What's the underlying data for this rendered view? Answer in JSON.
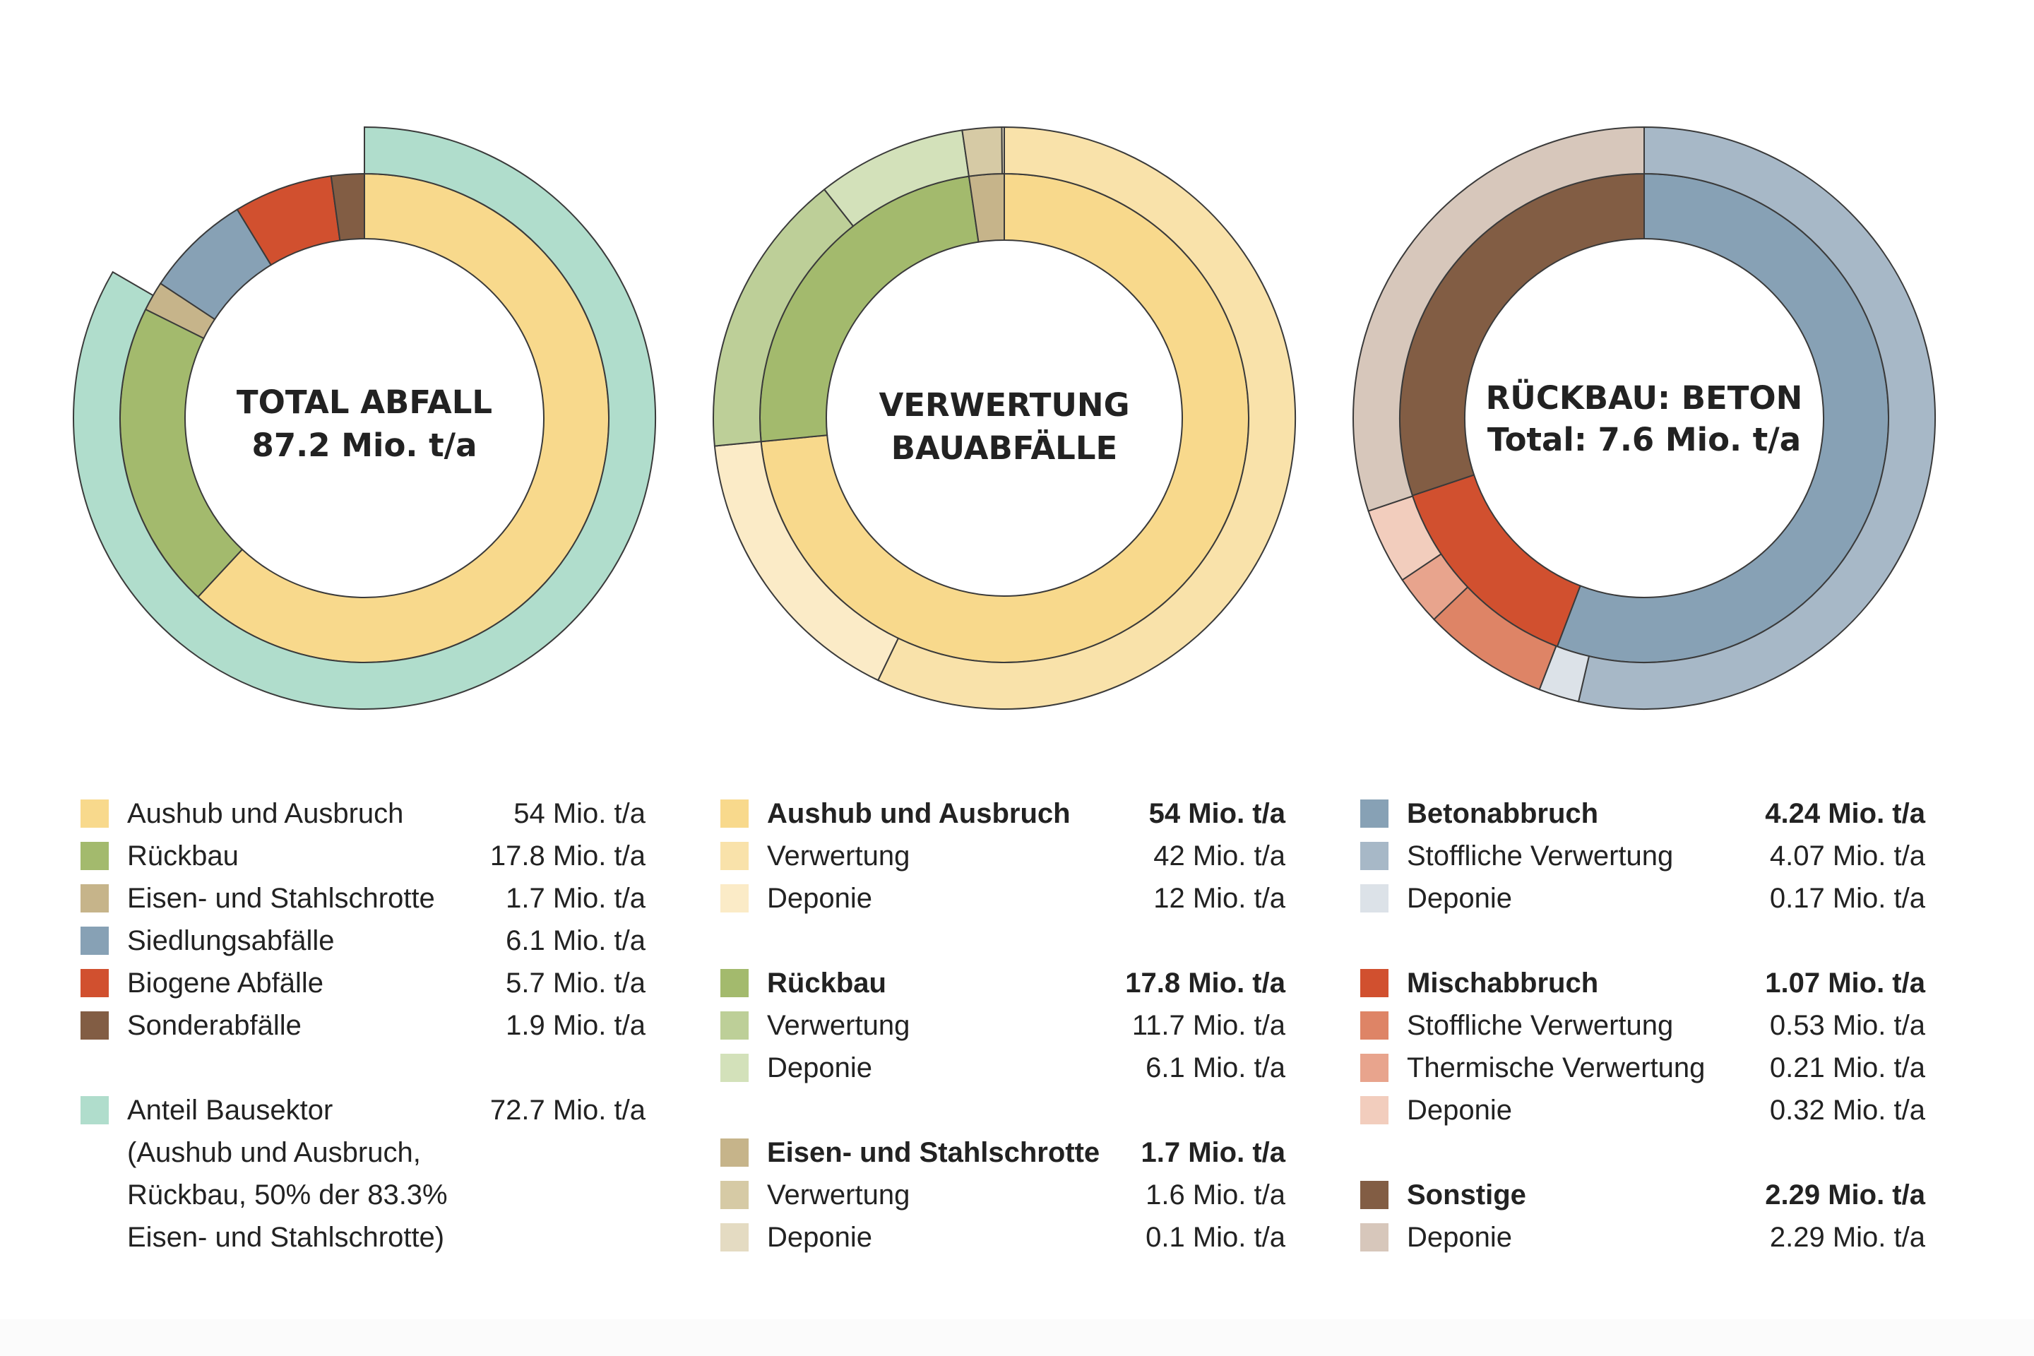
{
  "colors": {
    "aushub": "#F8D98C",
    "aushub_verwertung": "#F9E2AA",
    "aushub_deponie": "#FBEBC7",
    "rueckbau": "#A3BA6D",
    "rueckbau_verwertung": "#BDCF98",
    "rueckbau_deponie": "#D3E1BA",
    "eisen": "#C6B48A",
    "eisen_verwertung": "#D6CAA5",
    "eisen_deponie": "#E4DBC2",
    "siedlung": "#87A1B5",
    "siedlung_verwertung": "#A7B8C7",
    "siedlung_deponie": "#DCE2E8",
    "biogen": "#D1502F",
    "misch_stoffl": "#DE8466",
    "misch_therm": "#E8A48D",
    "misch_deponie": "#F2CDBD",
    "sonder": "#825D44",
    "sonstige_deponie": "#D7C7BB",
    "bausektor": "#B0DDCC"
  },
  "chart_data": [
    {
      "type": "pie",
      "variant": "nested-donut",
      "title_line1": "TOTAL ABFALL",
      "title_line2": "87.2 Mio. t/a",
      "unit": "Mio. t/a",
      "inner_ring": [
        {
          "name": "Aushub und Ausbruch",
          "value": 54,
          "color": "#F8D98C"
        },
        {
          "name": "Rückbau",
          "value": 17.8,
          "color": "#A3BA6D"
        },
        {
          "name": "Eisen- und Stahlschrotte",
          "value": 1.7,
          "color": "#C6B48A"
        },
        {
          "name": "Siedlungsabfälle",
          "value": 6.1,
          "color": "#87A1B5"
        },
        {
          "name": "Biogene Abfälle",
          "value": 5.7,
          "color": "#D1502F"
        },
        {
          "name": "Sonderabfälle",
          "value": 1.9,
          "color": "#825D44"
        }
      ],
      "outer_ring": [
        {
          "name": "Anteil Bausektor",
          "value": 72.7,
          "color": "#B0DDCC"
        }
      ]
    },
    {
      "type": "pie",
      "variant": "nested-donut",
      "title_line1": "VERWERTUNG",
      "title_line2": "BAUABFÄLLE",
      "unit": "Mio. t/a",
      "inner_ring": [
        {
          "name": "Aushub und Ausbruch",
          "value": 54,
          "color": "#F8D98C"
        },
        {
          "name": "Rückbau",
          "value": 17.8,
          "color": "#A3BA6D"
        },
        {
          "name": "Eisen- und Stahlschrotte",
          "value": 1.7,
          "color": "#C6B48A"
        }
      ],
      "outer_ring": [
        {
          "name": "Aushub Verwertung",
          "value": 42,
          "color": "#F9E2AA"
        },
        {
          "name": "Aushub Deponie",
          "value": 12,
          "color": "#FBEBC7"
        },
        {
          "name": "Rückbau Verwertung",
          "value": 11.7,
          "color": "#BDCF98"
        },
        {
          "name": "Rückbau Deponie",
          "value": 6.1,
          "color": "#D3E1BA"
        },
        {
          "name": "Eisen Verwertung",
          "value": 1.6,
          "color": "#D6CAA5"
        },
        {
          "name": "Eisen Deponie",
          "value": 0.1,
          "color": "#E4DBC2"
        }
      ]
    },
    {
      "type": "pie",
      "variant": "nested-donut",
      "title_line1": "RÜCKBAU: BETON",
      "title_line2": "Total: 7.6 Mio. t/a",
      "unit": "Mio. t/a",
      "inner_ring": [
        {
          "name": "Betonabbruch",
          "value": 4.24,
          "color": "#87A1B5"
        },
        {
          "name": "Mischabbruch",
          "value": 1.07,
          "color": "#D1502F"
        },
        {
          "name": "Sonstige",
          "value": 2.29,
          "color": "#825D44"
        }
      ],
      "outer_ring": [
        {
          "name": "Beton Stoffliche Verwertung",
          "value": 4.07,
          "color": "#A7B8C7"
        },
        {
          "name": "Beton Deponie",
          "value": 0.17,
          "color": "#DCE2E8"
        },
        {
          "name": "Misch Stoffliche Verwertung",
          "value": 0.53,
          "color": "#DE8466"
        },
        {
          "name": "Misch Thermische Verwertung",
          "value": 0.21,
          "color": "#E8A48D"
        },
        {
          "name": "Misch Deponie",
          "value": 0.32,
          "color": "#F2CDBD"
        },
        {
          "name": "Sonstige Deponie",
          "value": 2.29,
          "color": "#D7C7BB"
        }
      ]
    }
  ],
  "legend1": {
    "rows": [
      {
        "label": "Aushub und Ausbruch",
        "value": "54 Mio. t/a",
        "color": "#F8D98C"
      },
      {
        "label": "Rückbau",
        "value": "17.8 Mio. t/a",
        "color": "#A3BA6D"
      },
      {
        "label": "Eisen- und Stahlschrotte",
        "value": "1.7 Mio. t/a",
        "color": "#C6B48A"
      },
      {
        "label": "Siedlungsabfälle",
        "value": "6.1 Mio. t/a",
        "color": "#87A1B5"
      },
      {
        "label": "Biogene Abfälle",
        "value": "5.7 Mio. t/a",
        "color": "#D1502F"
      },
      {
        "label": "Sonderabfälle",
        "value": "1.9 Mio. t/a",
        "color": "#825D44"
      }
    ],
    "bausektor": {
      "label": "Anteil Bausektor",
      "value": "72.7 Mio. t/a",
      "color": "#B0DDCC",
      "note1": "(Aushub und Ausbruch,",
      "note2": "Rückbau, 50% der 83.3%",
      "note3": "Eisen- und Stahlschrotte)"
    }
  },
  "legend2": {
    "groups": [
      {
        "rows": [
          {
            "label": "Aushub und Ausbruch",
            "value": "54 Mio. t/a",
            "color": "#F8D98C",
            "head": true
          },
          {
            "label": "Verwertung",
            "value": "42 Mio. t/a",
            "color": "#F9E2AA"
          },
          {
            "label": "Deponie",
            "value": "12 Mio. t/a",
            "color": "#FBEBC7"
          }
        ]
      },
      {
        "rows": [
          {
            "label": "Rückbau",
            "value": "17.8 Mio. t/a",
            "color": "#A3BA6D",
            "head": true
          },
          {
            "label": "Verwertung",
            "value": "11.7 Mio. t/a",
            "color": "#BDCF98"
          },
          {
            "label": "Deponie",
            "value": "6.1 Mio. t/a",
            "color": "#D3E1BA"
          }
        ]
      },
      {
        "rows": [
          {
            "label": "Eisen- und Stahlschrotte",
            "value": "1.7 Mio. t/a",
            "color": "#C6B48A",
            "head": true
          },
          {
            "label": "Verwertung",
            "value": "1.6 Mio. t/a",
            "color": "#D6CAA5"
          },
          {
            "label": "Deponie",
            "value": "0.1 Mio. t/a",
            "color": "#E4DBC2"
          }
        ]
      }
    ]
  },
  "legend3": {
    "groups": [
      {
        "rows": [
          {
            "label": "Betonabbruch",
            "value": "4.24 Mio. t/a",
            "color": "#87A1B5",
            "head": true
          },
          {
            "label": "Stoffliche Verwertung",
            "value": "4.07 Mio. t/a",
            "color": "#A7B8C7"
          },
          {
            "label": "Deponie",
            "value": "0.17 Mio. t/a",
            "color": "#DCE2E8"
          }
        ]
      },
      {
        "rows": [
          {
            "label": "Mischabbruch",
            "value": "1.07 Mio. t/a",
            "color": "#D1502F",
            "head": true
          },
          {
            "label": "Stoffliche Verwertung",
            "value": "0.53 Mio. t/a",
            "color": "#DE8466"
          },
          {
            "label": "Thermische Verwertung",
            "value": "0.21 Mio. t/a",
            "color": "#E8A48D"
          },
          {
            "label": "Deponie",
            "value": "0.32 Mio. t/a",
            "color": "#F2CDBD"
          }
        ]
      },
      {
        "rows": [
          {
            "label": "Sonstige",
            "value": "2.29 Mio. t/a",
            "color": "#825D44",
            "head": true
          },
          {
            "label": "Deponie",
            "value": "2.29 Mio. t/a",
            "color": "#D7C7BB"
          }
        ]
      }
    ]
  }
}
